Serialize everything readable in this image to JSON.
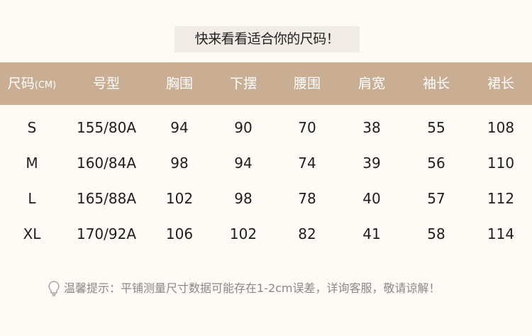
{
  "title": "快来看看适合你的尺码！",
  "table": {
    "headers": [
      "尺码",
      "号型",
      "胸围",
      "下摆",
      "腰围",
      "肩宽",
      "袖长",
      "裙长"
    ],
    "unit": "(CM)",
    "rows": [
      [
        "S",
        "155/80A",
        "94",
        "90",
        "70",
        "38",
        "55",
        "108"
      ],
      [
        "M",
        "160/84A",
        "98",
        "94",
        "74",
        "39",
        "56",
        "110"
      ],
      [
        "L",
        "165/88A",
        "102",
        "98",
        "78",
        "40",
        "57",
        "112"
      ],
      [
        "XL",
        "170/92A",
        "106",
        "102",
        "82",
        "41",
        "58",
        "114"
      ]
    ]
  },
  "tip": {
    "icon": "lightbulb-icon",
    "text": "温馨提示：平铺测量尺寸数据可能存在1-2cm误差，详询客服，敬请谅解！"
  },
  "colors": {
    "header": "#c9ae94",
    "background": "#fdf9f5"
  }
}
